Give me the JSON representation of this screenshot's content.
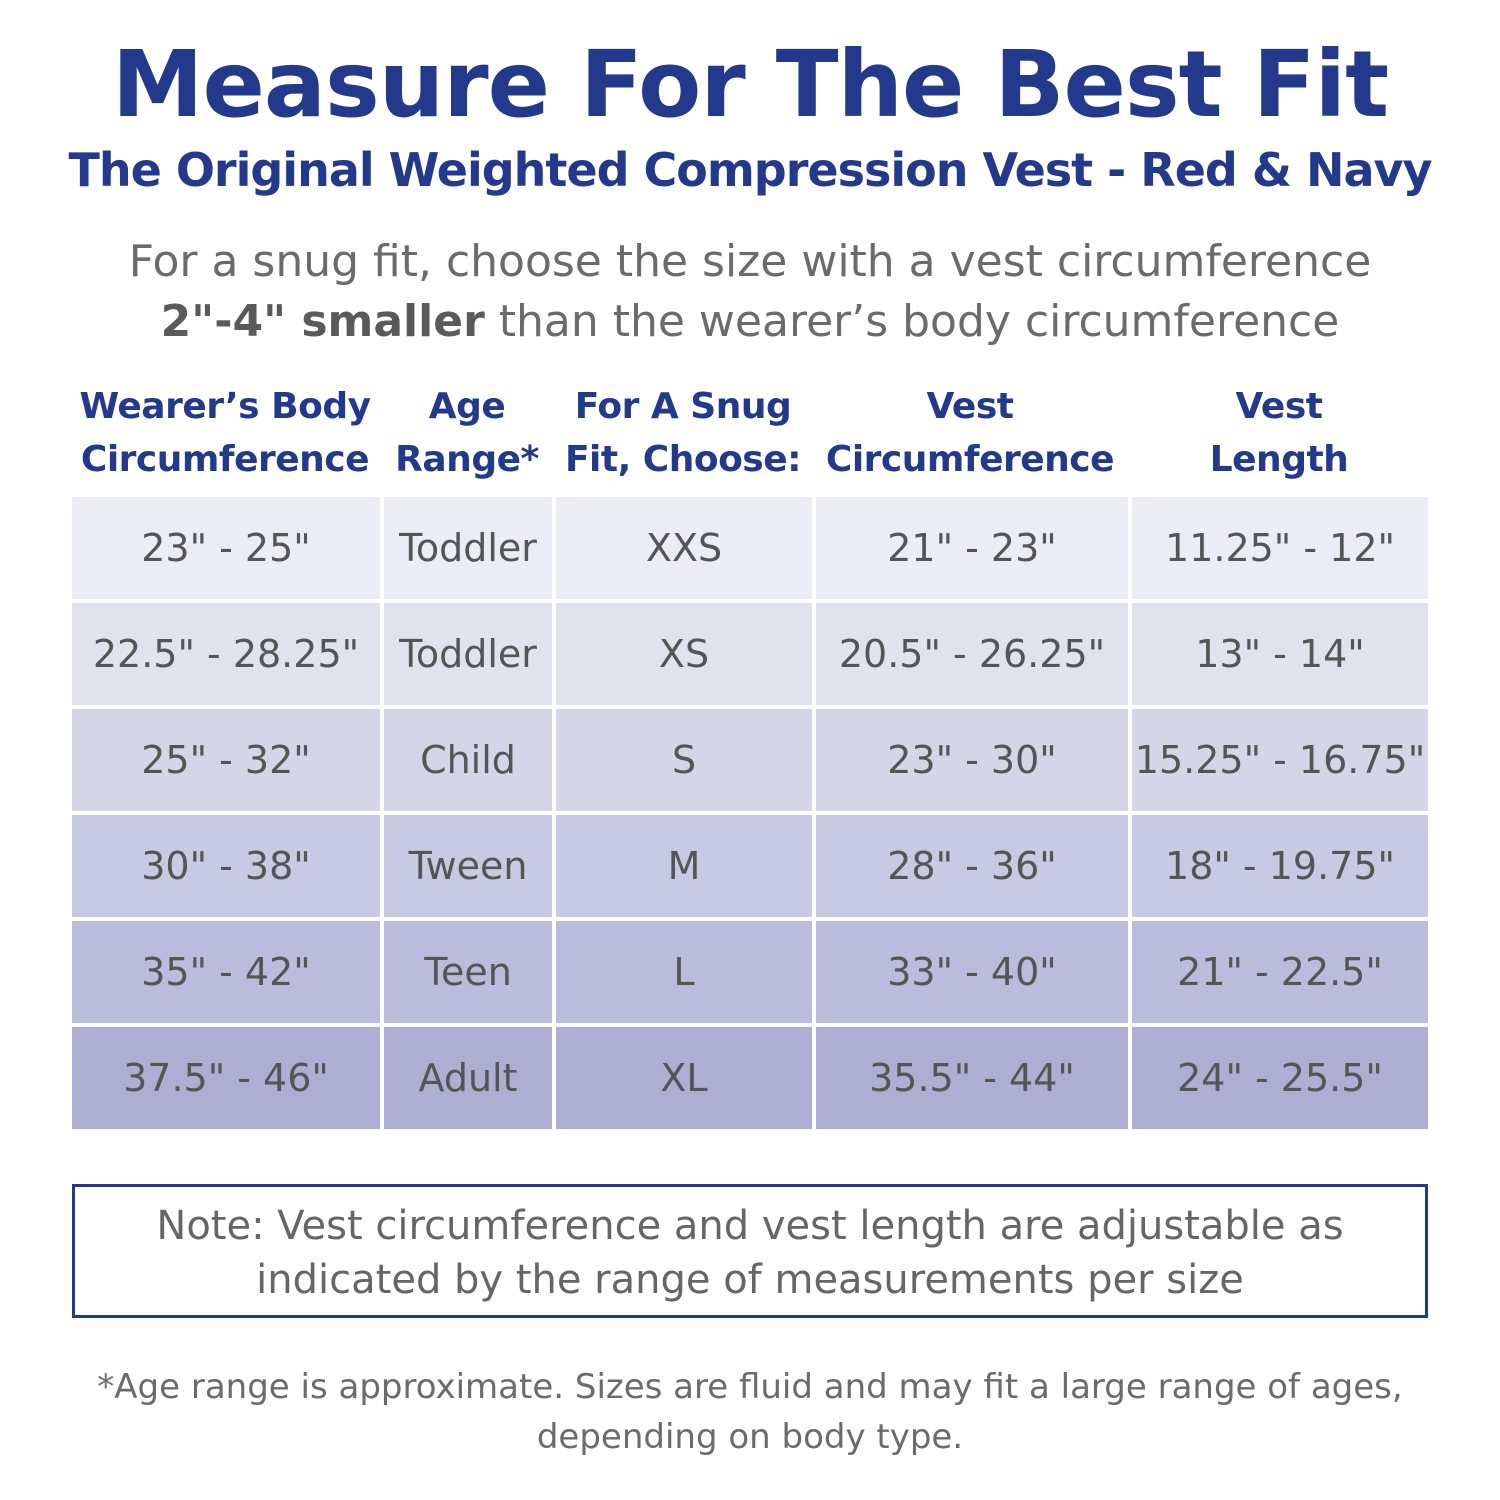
{
  "title": "Measure For The Best Fit",
  "subtitle": "The Original Weighted Compression Vest - Red & Navy",
  "intro": {
    "line1": "For a snug fit, choose the size with a vest circumference",
    "line2_strong": "2\"-4\" smaller",
    "line2_rest": " than the wearer’s body circumference"
  },
  "table": {
    "headers": [
      {
        "line1": "Wearer’s Body",
        "line2": "Circumference"
      },
      {
        "line1": "Age",
        "line2": "Range*"
      },
      {
        "line1": "For A Snug",
        "line2": "Fit, Choose:"
      },
      {
        "line1": "Vest",
        "line2": "Circumference"
      },
      {
        "line1": "Vest",
        "line2": "Length"
      }
    ],
    "rows": [
      [
        "23\" - 25\"",
        "Toddler",
        "XXS",
        "21\" - 23\"",
        "11.25\" - 12\""
      ],
      [
        "22.5\" - 28.25\"",
        "Toddler",
        "XS",
        "20.5\" - 26.25\"",
        "13\" - 14\""
      ],
      [
        "25\" - 32\"",
        "Child",
        "S",
        "23\" - 30\"",
        "15.25\" - 16.75\""
      ],
      [
        "30\" - 38\"",
        "Tween",
        "M",
        "28\" - 36\"",
        "18\" - 19.75\""
      ],
      [
        "35\" - 42\"",
        "Teen",
        "L",
        "33\" - 40\"",
        "21\" - 22.5\""
      ],
      [
        "37.5\" - 46\"",
        "Adult",
        "XL",
        "35.5\" -  44\"",
        "24\" - 25.5\""
      ]
    ],
    "row_colors": [
      "#ececf4",
      "#e1e2ee",
      "#d4d5e8",
      "#c8c9e2",
      "#bbbcdb",
      "#adaed2"
    ]
  },
  "note": {
    "line1": "Note: Vest circumference and vest length are adjustable as",
    "line2": "indicated by the range of measurements per size"
  },
  "footnote": {
    "line1": "*Age range is approximate. Sizes are fluid and may fit a large range of ages,",
    "line2": "depending on body type."
  },
  "colors": {
    "brand_navy": "#233a8c",
    "body_text": "#555555"
  }
}
